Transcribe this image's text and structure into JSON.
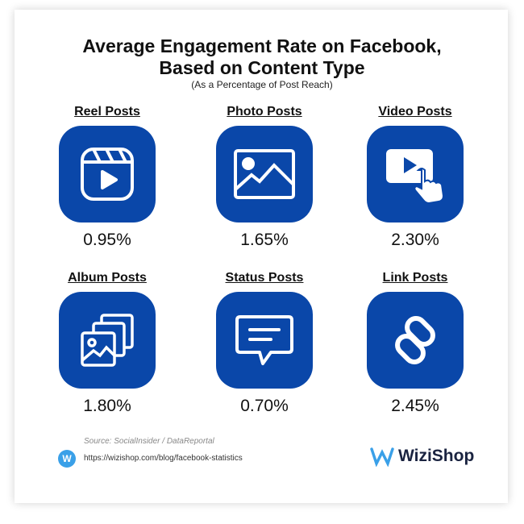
{
  "title_line1": "Average Engagement Rate on Facebook,",
  "title_line2": "Based on Content Type",
  "subtitle": "(As a Percentage of Post Reach)",
  "items": [
    {
      "label": "Reel Posts",
      "value": "0.95%"
    },
    {
      "label": "Photo Posts",
      "value": "1.65%"
    },
    {
      "label": "Video Posts",
      "value": "2.30%"
    },
    {
      "label": "Album Posts",
      "value": "1.80%"
    },
    {
      "label": "Status Posts",
      "value": "0.70%"
    },
    {
      "label": "Link Posts",
      "value": "2.45%"
    }
  ],
  "source": "Source: SocialInsider / DataReportal",
  "url": "https://wizishop.com/blog/facebook-statistics",
  "brand": "WiziShop",
  "colors": {
    "accent": "#0a47a9"
  },
  "chart_data": {
    "type": "table",
    "title": "Average Engagement Rate on Facebook, Based on Content Type",
    "subtitle": "(As a Percentage of Post Reach)",
    "categories": [
      "Reel Posts",
      "Photo Posts",
      "Video Posts",
      "Album Posts",
      "Status Posts",
      "Link Posts"
    ],
    "values": [
      0.95,
      1.65,
      2.3,
      1.8,
      0.7,
      2.45
    ],
    "unit": "%"
  }
}
